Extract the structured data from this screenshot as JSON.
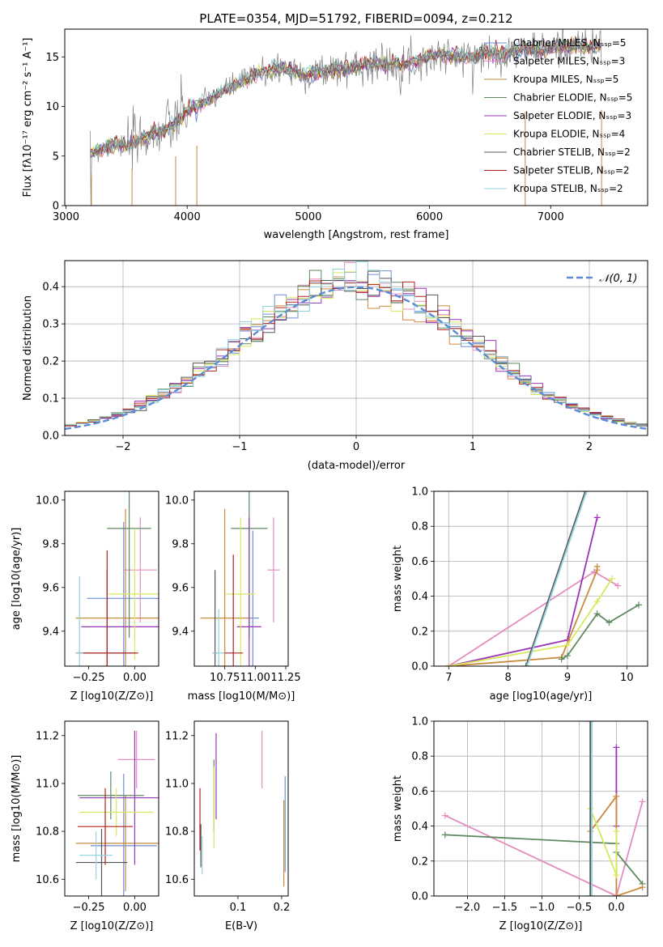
{
  "chart_data": [
    {
      "type": "line",
      "title": "PLATE=0354, MJD=51792, FIBERID=0094, z=0.212",
      "xlabel": "wavelength [Angstrom, rest frame]",
      "ylabel": "Flux [f_λ 10^-17 erg cm^-2 s^-1 A^-1]",
      "xlim": [
        2990,
        7800
      ],
      "ylim": [
        0,
        17.8
      ],
      "xticks": [
        3000,
        4000,
        5000,
        6000,
        7000
      ],
      "yticks": [
        0,
        5,
        10,
        15
      ],
      "grid": false,
      "legend_position": "right",
      "series": [
        {
          "name": "Chabrier MILES, N_SSP=5",
          "color": "#6d8fd6"
        },
        {
          "name": "Salpeter MILES, N_SSP=3",
          "color": "#e58cbf"
        },
        {
          "name": "Kroupa MILES, N_SSP=5",
          "color": "#c98a3e"
        },
        {
          "name": "Chabrier ELODIE, N_SSP=5",
          "color": "#5f8a60"
        },
        {
          "name": "Salpeter ELODIE, N_SSP=3",
          "color": "#9a34b7"
        },
        {
          "name": "Kroupa ELODIE, N_SSP=4",
          "color": "#d8e85c"
        },
        {
          "name": "Chabrier STELIB, N_SSP=2",
          "color": "#555555"
        },
        {
          "name": "Salpeter STELIB, N_SSP=2",
          "color": "#b22222"
        },
        {
          "name": "Kroupa STELIB, N_SSP=2",
          "color": "#8fd3dc"
        }
      ],
      "data_envelope": {
        "x": [
          3200,
          3300,
          3400,
          3500,
          3600,
          3700,
          3800,
          3900,
          4000,
          4100,
          4200,
          4300,
          4400,
          4500,
          4600,
          4700,
          4800,
          4900,
          5000,
          5100,
          5200,
          5300,
          5400,
          5500,
          5600,
          5700,
          5800,
          5900,
          6000,
          6100,
          6200,
          6300,
          6400,
          6500,
          6600,
          6700,
          6800,
          6900,
          7000,
          7100,
          7200,
          7300,
          7400
        ],
        "y": [
          5.2,
          5.8,
          6.2,
          6.0,
          6.5,
          7.2,
          7.6,
          8.2,
          9.6,
          10.2,
          10.8,
          11.6,
          12.2,
          12.8,
          13.4,
          13.6,
          13.9,
          13.4,
          13.2,
          13.5,
          13.8,
          13.9,
          14.1,
          14.3,
          14.2,
          14.4,
          14.2,
          14.6,
          15.0,
          15.2,
          15.1,
          14.9,
          15.2,
          15.5,
          15.3,
          15.6,
          15.8,
          15.6,
          15.9,
          16.0,
          16.2,
          16.0,
          16.1
        ]
      }
    },
    {
      "type": "bar",
      "xlabel": "(data-model)/error",
      "ylabel": "Normed distribution",
      "xlim": [
        -2.5,
        2.5
      ],
      "ylim": [
        0,
        0.47
      ],
      "xticks": [
        -2,
        -1,
        0,
        1,
        2
      ],
      "yticks": [
        0.0,
        0.1,
        0.2,
        0.3,
        0.4
      ],
      "grid": true,
      "legend_position": "top-right",
      "legend": [
        "N(0,1)"
      ],
      "reference_curve": {
        "name": "N(0,1)",
        "mean": 0,
        "sigma": 1,
        "color": "#5b8bd4"
      },
      "bin_width": 0.1
    },
    {
      "type": "scatter",
      "xlabel": "Z [log10(Z/Z⊙)]",
      "ylabel": "age [log10(age/yr)]",
      "xlim": [
        -0.38,
        0.13
      ],
      "ylim": [
        9.24,
        10.04
      ],
      "xticks": [
        -0.25,
        0.0
      ],
      "yticks": [
        9.4,
        9.6,
        9.8,
        10.0
      ],
      "errorbars": [
        {
          "color": "#6d8fd6",
          "x": -0.06,
          "xerr": 0.2,
          "y": 9.55,
          "yerr": 0.35
        },
        {
          "color": "#e58cbf",
          "x": 0.03,
          "xerr": 0.09,
          "y": 9.68,
          "yerr": 0.24
        },
        {
          "color": "#c98a3e",
          "x": -0.05,
          "xerr": 0.27,
          "y": 9.46,
          "yerr": 0.5
        },
        {
          "color": "#5f8a60",
          "x": -0.03,
          "xerr": 0.12,
          "y": 9.87,
          "yerr": 0.5
        },
        {
          "color": "#9a34b7",
          "x": 0.0,
          "xerr": 0.29,
          "y": 9.42,
          "yerr": 0.0
        },
        {
          "color": "#d8e85c",
          "x": 0.0,
          "xerr": 0.14,
          "y": 9.57,
          "yerr": 0.3
        },
        {
          "color": "#555555",
          "x": -0.15,
          "xerr": 0.16,
          "y": 9.3,
          "yerr": 0.38
        },
        {
          "color": "#b22222",
          "x": -0.15,
          "xerr": 0.17,
          "y": 9.3,
          "yerr": 0.47
        },
        {
          "color": "#8fd3dc",
          "x": -0.3,
          "xerr": 0.02,
          "y": 9.3,
          "yerr": 0.35
        }
      ]
    },
    {
      "type": "scatter",
      "xlabel": "mass [log10(M/M⊙)]",
      "ylabel": "",
      "xlim": [
        10.5,
        11.27
      ],
      "ylim": [
        9.24,
        10.04
      ],
      "xticks": [
        10.75,
        11.0,
        11.25
      ],
      "yticks": [
        9.4,
        9.6,
        9.8,
        10.0
      ],
      "errorbars": [
        {
          "color": "#6d8fd6",
          "x": 10.98,
          "xerr": 0.05,
          "y": 9.46,
          "yerr": 0.4
        },
        {
          "color": "#e58cbf",
          "x": 11.15,
          "xerr": 0.05,
          "y": 9.68,
          "yerr": 0.24
        },
        {
          "color": "#c98a3e",
          "x": 10.75,
          "xerr": 0.2,
          "y": 9.46,
          "yerr": 0.5
        },
        {
          "color": "#5f8a60",
          "x": 10.95,
          "xerr": 0.15,
          "y": 9.87,
          "yerr": 0.5
        },
        {
          "color": "#9a34b7",
          "x": 10.95,
          "xerr": 0.1,
          "y": 9.42,
          "yerr": 0.5
        },
        {
          "color": "#d8e85c",
          "x": 10.88,
          "xerr": 0.12,
          "y": 9.57,
          "yerr": 0.35
        },
        {
          "color": "#555555",
          "x": 10.67,
          "xerr": 0.02,
          "y": 9.3,
          "yerr": 0.38
        },
        {
          "color": "#b22222",
          "x": 10.82,
          "xerr": 0.08,
          "y": 9.3,
          "yerr": 0.45
        },
        {
          "color": "#8fd3dc",
          "x": 10.7,
          "xerr": 0.05,
          "y": 9.3,
          "yerr": 0.2
        }
      ]
    },
    {
      "type": "line",
      "xlabel": "age [log10(age/yr)]",
      "ylabel": "mass weight",
      "xlim": [
        6.75,
        10.35
      ],
      "ylim": [
        0,
        1.0
      ],
      "xticks": [
        7,
        8,
        9,
        10
      ],
      "yticks": [
        0.0,
        0.2,
        0.4,
        0.6,
        0.8,
        1.0
      ],
      "grid": true,
      "series": [
        {
          "color": "#e58cbf",
          "x": [
            7.0,
            9.45,
            9.85
          ],
          "y": [
            0.0,
            0.54,
            0.46
          ]
        },
        {
          "color": "#9a34b7",
          "x": [
            7.0,
            9.0,
            9.5
          ],
          "y": [
            0.0,
            0.15,
            0.85
          ]
        },
        {
          "color": "#c98a3e",
          "x": [
            7.0,
            8.9,
            9.5,
            9.5
          ],
          "y": [
            0.0,
            0.05,
            0.55,
            0.57
          ]
        },
        {
          "color": "#d8e85c",
          "x": [
            7.0,
            9.0,
            9.5,
            9.75
          ],
          "y": [
            0.0,
            0.12,
            0.37,
            0.5
          ]
        },
        {
          "color": "#5f8a60",
          "x": [
            8.9,
            9.0,
            9.5,
            9.7,
            10.2
          ],
          "y": [
            0.04,
            0.06,
            0.3,
            0.25,
            0.35
          ]
        },
        {
          "color": "#555555",
          "x": [
            8.3,
            9.3
          ],
          "y": [
            0.0,
            1.0
          ]
        },
        {
          "color": "#8fd3dc",
          "x": [
            8.32,
            9.32
          ],
          "y": [
            0.0,
            1.0
          ]
        }
      ]
    },
    {
      "type": "scatter",
      "xlabel": "Z [log10(Z/Z⊙)]",
      "ylabel": "mass [log10(M/M⊙)]",
      "xlim": [
        -0.38,
        0.13
      ],
      "ylim": [
        10.53,
        11.26
      ],
      "xticks": [
        -0.25,
        0.0
      ],
      "yticks": [
        10.6,
        10.8,
        11.0,
        11.2
      ],
      "errorbars": [
        {
          "color": "#6d8fd6",
          "x": -0.06,
          "xerr": 0.18,
          "y": 10.74,
          "yerr": 0.3
        },
        {
          "color": "#e58cbf",
          "x": 0.01,
          "xerr": 0.1,
          "y": 11.1,
          "yerr": 0.12
        },
        {
          "color": "#c98a3e",
          "x": -0.05,
          "xerr": 0.27,
          "y": 10.75,
          "yerr": 0.2
        },
        {
          "color": "#5f8a60",
          "x": -0.13,
          "xerr": 0.18,
          "y": 10.95,
          "yerr": 0.1
        },
        {
          "color": "#9a34b7",
          "x": 0.0,
          "xerr": 0.3,
          "y": 10.94,
          "yerr": 0.28
        },
        {
          "color": "#d8e85c",
          "x": -0.1,
          "xerr": 0.2,
          "y": 10.88,
          "yerr": 0.1
        },
        {
          "color": "#555555",
          "x": -0.18,
          "xerr": 0.14,
          "y": 10.67,
          "yerr": 0.14
        },
        {
          "color": "#b22222",
          "x": -0.16,
          "xerr": 0.15,
          "y": 10.82,
          "yerr": 0.16
        },
        {
          "color": "#8fd3dc",
          "x": -0.21,
          "xerr": 0.09,
          "y": 10.7,
          "yerr": 0.1
        }
      ]
    },
    {
      "type": "scatter",
      "xlabel": "E(B-V)",
      "ylabel": "",
      "xlim": [
        0.0,
        0.215
      ],
      "ylim": [
        10.53,
        11.26
      ],
      "xticks": [
        0.1,
        0.2
      ],
      "yticks": [
        10.6,
        10.8,
        11.0,
        11.2
      ],
      "errorbars": [
        {
          "color": "#6d8fd6",
          "x": 0.208,
          "y": 10.83,
          "yerr": 0.2
        },
        {
          "color": "#e58cbf",
          "x": 0.155,
          "y": 11.1,
          "yerr": 0.12
        },
        {
          "color": "#c98a3e",
          "x": 0.205,
          "y": 10.75,
          "yerr": 0.18
        },
        {
          "color": "#5f8a60",
          "x": 0.045,
          "y": 10.95,
          "yerr": 0.15
        },
        {
          "color": "#9a34b7",
          "x": 0.05,
          "y": 11.03,
          "yerr": 0.18
        },
        {
          "color": "#d8e85c",
          "x": 0.045,
          "y": 10.9,
          "yerr": 0.17
        },
        {
          "color": "#555555",
          "x": 0.015,
          "y": 10.74,
          "yerr": 0.09
        },
        {
          "color": "#b22222",
          "x": 0.013,
          "y": 10.85,
          "yerr": 0.13
        },
        {
          "color": "#8fd3dc",
          "x": 0.018,
          "y": 10.7,
          "yerr": 0.08
        }
      ]
    },
    {
      "type": "line",
      "xlabel": "Z [log10(Z/Z⊙)]",
      "ylabel": "mass weight",
      "xlim": [
        -2.45,
        0.42
      ],
      "ylim": [
        0,
        1.0
      ],
      "xticks": [
        -2.0,
        -1.5,
        -1.0,
        -0.5,
        0.0
      ],
      "yticks": [
        0.0,
        0.2,
        0.4,
        0.6,
        0.8,
        1.0
      ],
      "grid": true,
      "series": [
        {
          "color": "#e58cbf",
          "x": [
            -2.3,
            0.0,
            0.35
          ],
          "y": [
            0.46,
            0.0,
            0.54
          ]
        },
        {
          "color": "#5f8a60",
          "x": [
            -2.3,
            0.0,
            0.0,
            0.35
          ],
          "y": [
            0.35,
            0.3,
            0.25,
            0.07
          ]
        },
        {
          "color": "#9a34b7",
          "x": [
            0.0,
            0.0
          ],
          "y": [
            0.4,
            0.85
          ]
        },
        {
          "color": "#c98a3e",
          "x": [
            -0.35,
            0.0,
            0.0,
            0.35
          ],
          "y": [
            0.37,
            0.57,
            0.0,
            0.05
          ]
        },
        {
          "color": "#d8e85c",
          "x": [
            -0.35,
            0.0,
            0.0
          ],
          "y": [
            0.5,
            0.12,
            0.37
          ]
        },
        {
          "color": "#555555",
          "x": [
            -0.35,
            -0.35
          ],
          "y": [
            0.0,
            1.0
          ]
        },
        {
          "color": "#8fd3dc",
          "x": [
            -0.33,
            -0.33
          ],
          "y": [
            0.0,
            1.0
          ]
        }
      ]
    }
  ]
}
